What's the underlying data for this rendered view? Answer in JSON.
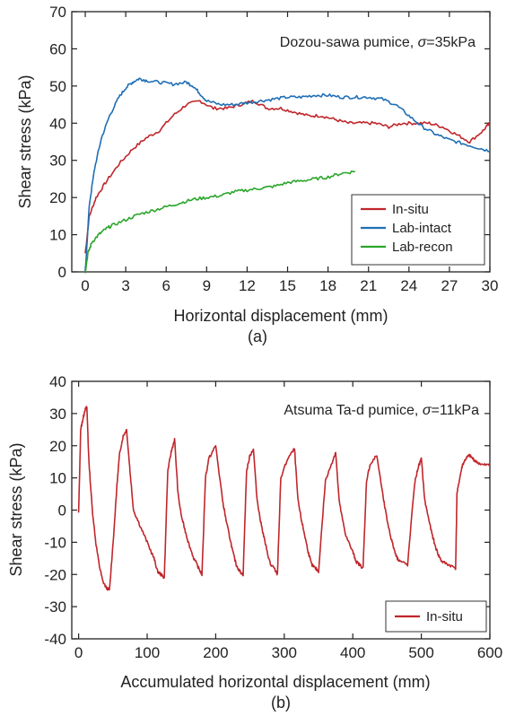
{
  "chart_data": [
    {
      "type": "line",
      "title": "Dozou-sawa pumice, σ=35kPa",
      "title_parts": {
        "name": "Dozou-sawa pumice, ",
        "sigma": "σ",
        "value": "=35kPa"
      },
      "panel_label": "(a)",
      "xlabel": "Horizontal displacement (mm)",
      "ylabel": "Shear stress (kPa)",
      "xlim": [
        -1,
        30
      ],
      "ylim": [
        0,
        70
      ],
      "xticks": [
        0,
        3,
        6,
        9,
        12,
        15,
        18,
        21,
        24,
        27,
        30
      ],
      "yticks": [
        0,
        10,
        20,
        30,
        40,
        50,
        60,
        70
      ],
      "legend_position": "lower-right",
      "series": [
        {
          "name": "In-situ",
          "color": "#c0262b",
          "x": [
            0,
            0.3,
            0.8,
            1.5,
            2.5,
            3.5,
            4.5,
            5.5,
            6.5,
            7.5,
            8.5,
            9.5,
            10.5,
            11.5,
            12.5,
            13.5,
            14.5,
            15.5,
            16.5,
            17.5,
            18.5,
            19.5,
            20.5,
            21.5,
            22.5,
            23.5,
            24.5,
            25.5,
            26.5,
            27.5,
            28.5,
            29.5,
            30
          ],
          "y": [
            5,
            15,
            20,
            24,
            29,
            33,
            36,
            38,
            42,
            45,
            46,
            44,
            44,
            45,
            46,
            44,
            44,
            43,
            42,
            42,
            41,
            40,
            40,
            40,
            39,
            40,
            40,
            40,
            39,
            37,
            35,
            38,
            40
          ]
        },
        {
          "name": "Lab-intact",
          "color": "#1f6fb5",
          "x": [
            0,
            0.3,
            0.7,
            1.2,
            1.8,
            2.5,
            3.0,
            3.5,
            4.0,
            4.5,
            5.5,
            6.5,
            7.5,
            8.0,
            8.5,
            9.0,
            10,
            11,
            12,
            13,
            14,
            15,
            16,
            17,
            18,
            19,
            20,
            21,
            22,
            23,
            24,
            25,
            26,
            27,
            28,
            29,
            30
          ],
          "y": [
            0,
            18,
            28,
            36,
            42,
            47,
            49.5,
            51,
            52,
            51.5,
            51,
            50.5,
            51,
            50,
            48,
            46,
            45,
            45,
            45.5,
            46,
            46.5,
            47,
            47,
            47.5,
            47.5,
            47,
            47,
            47,
            46.5,
            45,
            42,
            39,
            37,
            35.5,
            34.5,
            33.5,
            32.5
          ]
        },
        {
          "name": "Lab-recon",
          "color": "#2aa52a",
          "x": [
            0,
            0.2,
            0.5,
            1.0,
            1.5,
            2.0,
            3.0,
            4.0,
            5.0,
            6.0,
            7.0,
            8.0,
            9.0,
            10,
            11,
            12,
            13,
            14,
            15,
            16,
            17,
            18,
            19,
            20
          ],
          "y": [
            0,
            5,
            8,
            10,
            11.5,
            12.5,
            14,
            15.5,
            16.5,
            17.5,
            18.5,
            19.5,
            20,
            20.5,
            21.5,
            22,
            22.5,
            23,
            24,
            24.5,
            25,
            25.5,
            26.5,
            27
          ]
        }
      ]
    },
    {
      "type": "line",
      "title": "Atsuma Ta-d pumice, σ=11kPa",
      "title_parts": {
        "name": "Atsuma Ta-d pumice, ",
        "sigma": "σ",
        "value": "=11kPa"
      },
      "panel_label": "(b)",
      "xlabel": "Accumulated horizontal displacement (mm)",
      "ylabel": "Shear stress (kPa)",
      "xlim": [
        -10,
        600
      ],
      "ylim": [
        -40,
        40
      ],
      "xticks": [
        0,
        100,
        200,
        300,
        400,
        500,
        600
      ],
      "yticks": [
        -40,
        -30,
        -20,
        -10,
        0,
        10,
        20,
        30,
        40
      ],
      "legend_position": "lower-right",
      "series": [
        {
          "name": "In-situ",
          "color": "#c0262b",
          "x": [
            0,
            3,
            6,
            9,
            12,
            15,
            20,
            25,
            30,
            35,
            40,
            45,
            52,
            56,
            60,
            65,
            70,
            75,
            80,
            90,
            100,
            110,
            115,
            120,
            125,
            130,
            135,
            140,
            145,
            150,
            155,
            160,
            168,
            175,
            180,
            185,
            190,
            200,
            210,
            215,
            220,
            225,
            230,
            235,
            240,
            245,
            250,
            255,
            260,
            265,
            270,
            275,
            280,
            285,
            290,
            295,
            305,
            315,
            320,
            325,
            330,
            335,
            340,
            345,
            350,
            360,
            370,
            375,
            380,
            385,
            390,
            400,
            405,
            410,
            415,
            420,
            425,
            435,
            445,
            450,
            455,
            460,
            465,
            470,
            480,
            490,
            495,
            500,
            505,
            510,
            515,
            520,
            525,
            530,
            540,
            550,
            552,
            556,
            560,
            565,
            570,
            575,
            580,
            590,
            600
          ],
          "y": [
            -1,
            25,
            28,
            31,
            32,
            15,
            0,
            -10,
            -17,
            -22,
            -24,
            -25,
            -5,
            8,
            18,
            23,
            25,
            12,
            0,
            -5,
            -10,
            -15,
            -19,
            -20,
            -21,
            12,
            18,
            22,
            5,
            -2,
            -6,
            -10,
            -15,
            -18,
            -20,
            10,
            16,
            20,
            3,
            -3,
            -8,
            -13,
            -17,
            -19,
            -20,
            12,
            17,
            19,
            4,
            -3,
            -8,
            -13,
            -17,
            -18,
            -20,
            10,
            16,
            19,
            3,
            -3,
            -8,
            -13,
            -17,
            -18,
            -19,
            9,
            15,
            18,
            3,
            -3,
            -8,
            -13,
            -16,
            -17,
            -18,
            9,
            14,
            17,
            3,
            -3,
            -8,
            -12,
            -15,
            -16,
            -17,
            8,
            13,
            16,
            3,
            -2,
            -7,
            -11,
            -14,
            -16,
            -17,
            -18,
            5,
            10,
            14,
            16,
            17,
            16,
            15,
            14,
            14
          ]
        }
      ]
    }
  ]
}
